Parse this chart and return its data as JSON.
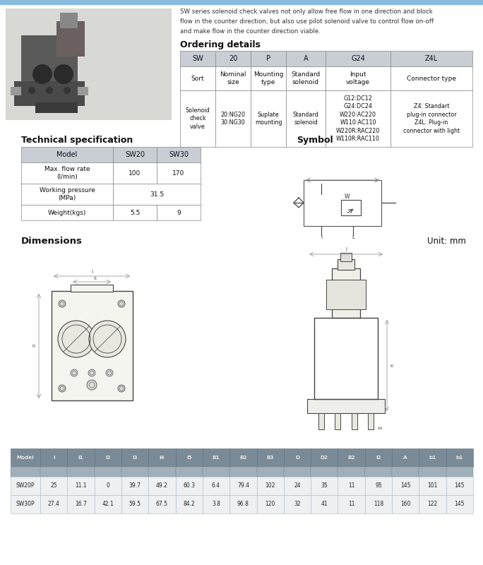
{
  "description": "SW series solenoid check valves not only allow free flow in one direction and block\nflow in the counter direction, but also use pilot solenoid valve to control flow on-off\nand make flow in the counter direction viable.",
  "ordering_title": "Ordering details",
  "ordering_headers": [
    "SW",
    "20",
    "P",
    "A",
    "G24",
    "Z4L"
  ],
  "ordering_row1": [
    "Sort",
    "Nominal\nsize",
    "Mounting\ntype",
    "Standard\nsolenoid",
    "Input\nvoltage",
    "Connector type"
  ],
  "ordering_row2": [
    "Solenoid\ncheck\nvalve",
    "20:NG20\n30:NG30",
    "Suplate\nmounting",
    "Standard\nsolenoid",
    "G12:DC12\nG24:DC24\nW220:AC220\nW110:AC110\nW220R:RAC220\nW110R:RAC110",
    "Z4: Standart\nplug-in connector\nZ4L: Plug-in\nconnector with light"
  ],
  "tech_title": "Technical specification",
  "tech_headers": [
    "Model",
    "SW20",
    "SW30"
  ],
  "tech_rows": [
    [
      "Max. flow rate\n(l/min)",
      "100",
      "170"
    ],
    [
      "Working pressure\n(MPa)",
      "31.5",
      ""
    ],
    [
      "Weight(kgs)",
      "5.5",
      "9"
    ]
  ],
  "symbol_title": "Symbol",
  "dimensions_title": "Dimensions",
  "unit_label": "Unit: mm",
  "dim_headers": [
    "Model",
    "l",
    "l1",
    "l2",
    "l3",
    "l4",
    "l5",
    "B1",
    "B2",
    "B3",
    "D",
    "D2",
    "B2",
    "l2",
    "A",
    "b1",
    "b1"
  ],
  "dim_rows": [
    [
      "SW20P",
      "25",
      "11.1",
      "0",
      "39.7",
      "49.2",
      "60.3",
      "6.4",
      "79.4",
      "102",
      "24",
      "35",
      "11",
      "95",
      "145",
      "101",
      "145"
    ],
    [
      "SW30P",
      "27.4",
      "16.7",
      "42.1",
      "59.5",
      "67.5",
      "84.2",
      "3.8",
      "96.8",
      "120",
      "32",
      "41",
      "11",
      "118",
      "160",
      "122",
      "145"
    ]
  ],
  "bg": "#ffffff",
  "light_blue_bar": "#a8c8e8",
  "table_header_bg": "#c8ced4",
  "dim_header_bg": "#7a8a96",
  "dim_row_bg": "#dce2e6",
  "dim_data_bg": "#eef0f2"
}
